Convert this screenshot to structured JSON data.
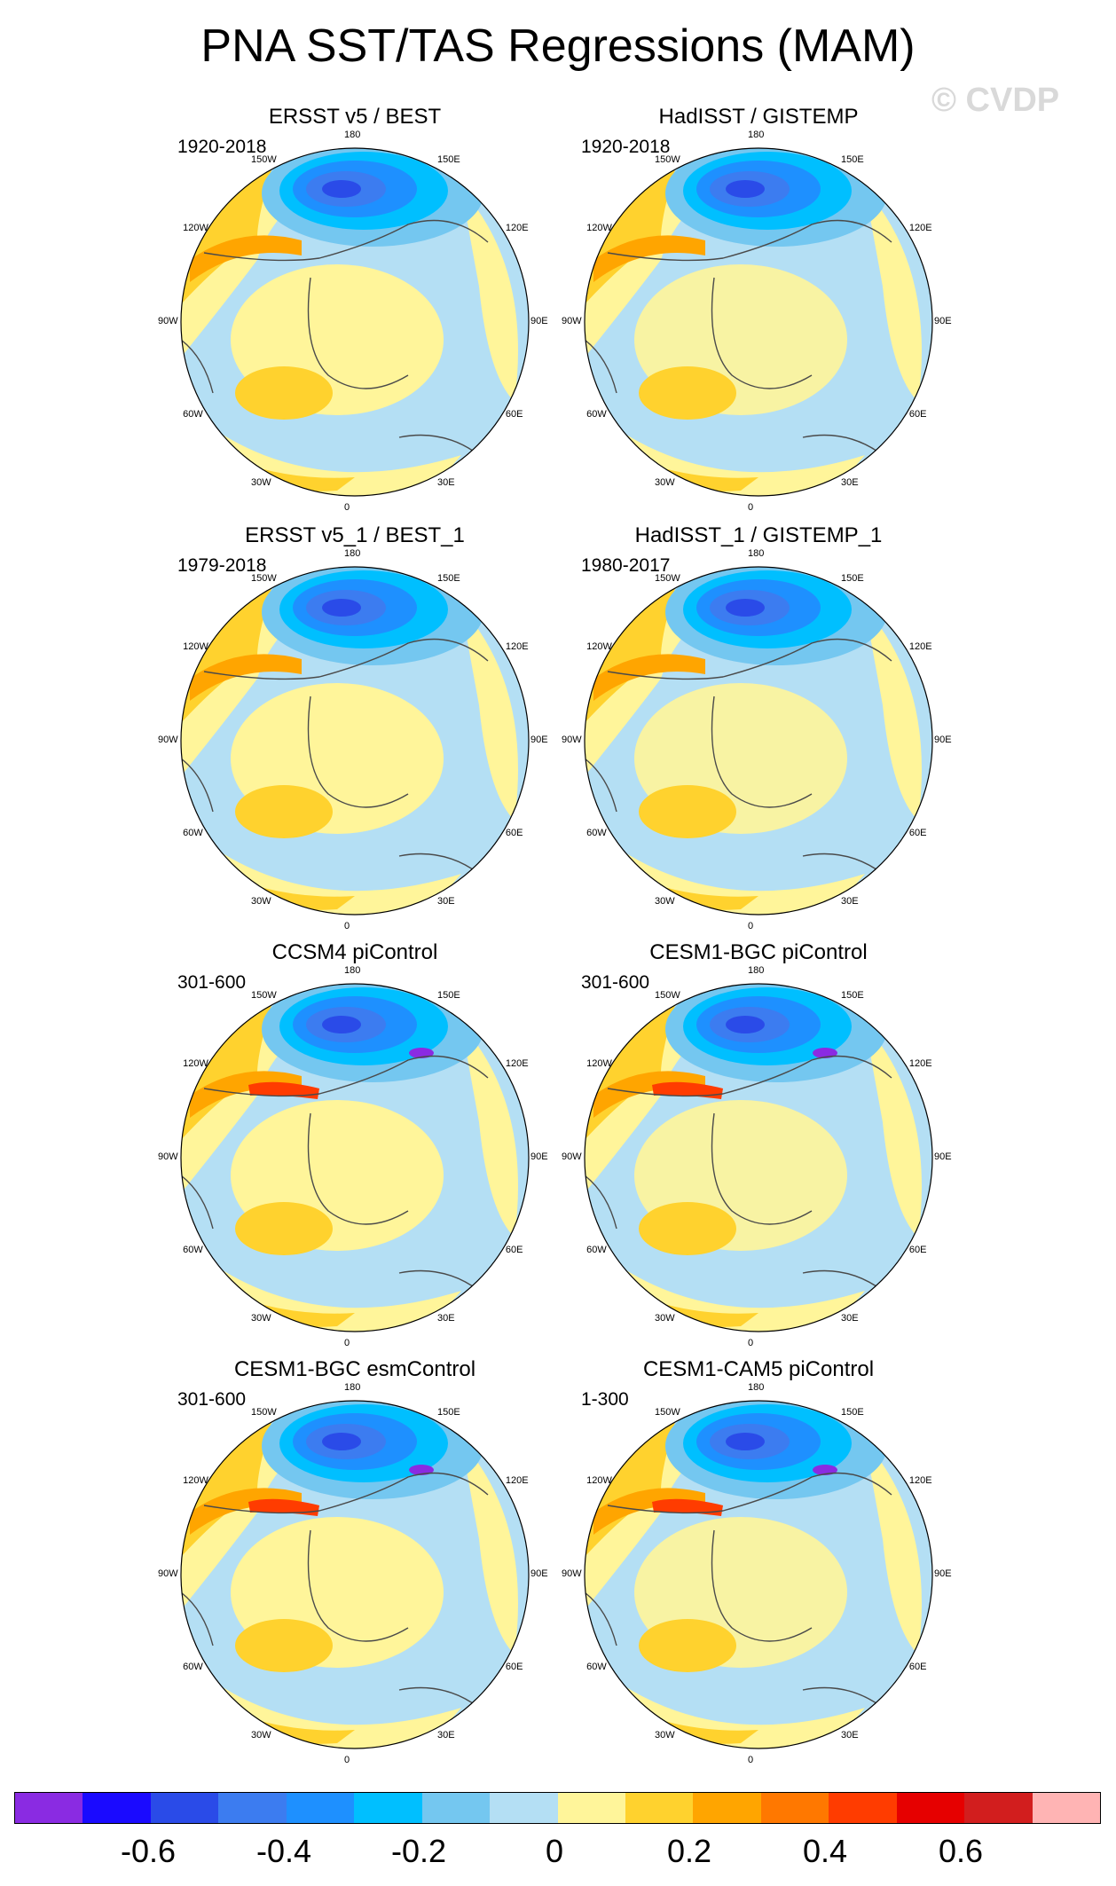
{
  "title": "PNA SST/TAS Regressions (MAM)",
  "watermark": "© CVDP",
  "lon_labels": [
    "180",
    "150E",
    "120E",
    "90E",
    "60E",
    "30E",
    "0",
    "30W",
    "60W",
    "90W",
    "120W",
    "150W"
  ],
  "panels": [
    {
      "title": "ERSST v5 / BEST",
      "period": "1920-2018"
    },
    {
      "title": "HadISST / GISTEMP",
      "period": "1920-2018"
    },
    {
      "title": "ERSST v5_1 / BEST_1",
      "period": "1979-2018"
    },
    {
      "title": "HadISST_1 / GISTEMP_1",
      "period": "1980-2017"
    },
    {
      "title": "CCSM4 piControl",
      "period": "301-600"
    },
    {
      "title": "CESM1-BGC piControl",
      "period": "301-600"
    },
    {
      "title": "CESM1-BGC esmControl",
      "period": "301-600"
    },
    {
      "title": "CESM1-CAM5 piControl",
      "period": "1-300"
    }
  ],
  "colorbar": {
    "colors": [
      "#8a2be2",
      "#1a0aff",
      "#2a4be8",
      "#3c7cf0",
      "#1e90ff",
      "#00bfff",
      "#74c7f0",
      "#b4dff4",
      "#fff59a",
      "#ffd22e",
      "#ffa500",
      "#ff7800",
      "#ff3c00",
      "#e60000",
      "#d21e1e",
      "#ffb4b4"
    ],
    "tick_labels": [
      "-0.6",
      "-0.4",
      "-0.2",
      "0",
      "0.2",
      "0.4",
      "0.6"
    ]
  }
}
